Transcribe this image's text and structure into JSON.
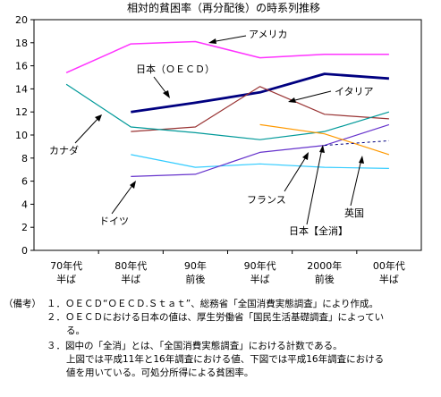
{
  "chart_data": {
    "type": "line",
    "title": "相対的貧困率（再分配後）の時系列推移",
    "ylim": [
      0,
      20
    ],
    "yticks": [
      0,
      2,
      4,
      6,
      8,
      10,
      12,
      14,
      16,
      18,
      20
    ],
    "categories": [
      [
        "70年代",
        "半ば"
      ],
      [
        "80年代",
        "半ば"
      ],
      [
        "90年",
        "前後"
      ],
      [
        "90年代",
        "半ば"
      ],
      [
        "2000年",
        "前後"
      ],
      [
        "00年代",
        "半ば"
      ]
    ],
    "series": [
      {
        "name": "アメリカ",
        "color": "#ff33ff",
        "width": 1.5,
        "dash": "",
        "values": [
          15.4,
          17.9,
          18.1,
          16.7,
          17.0,
          17.0
        ]
      },
      {
        "name": "日本（ＯＥＣＤ）",
        "color": "#000080",
        "width": 2.8,
        "dash": "",
        "values": [
          null,
          12.0,
          12.8,
          13.7,
          15.3,
          14.9
        ]
      },
      {
        "name": "イタリア",
        "color": "#993333",
        "width": 1.2,
        "dash": "",
        "values": [
          null,
          10.3,
          10.7,
          14.2,
          11.8,
          11.4
        ]
      },
      {
        "name": "カナダ",
        "color": "#009999",
        "width": 1.2,
        "dash": "",
        "values": [
          14.4,
          10.7,
          10.2,
          9.6,
          10.3,
          12.0
        ]
      },
      {
        "name": "フランス",
        "color": "#33ccff",
        "width": 1.2,
        "dash": "",
        "values": [
          null,
          8.3,
          7.2,
          7.5,
          7.2,
          7.1
        ]
      },
      {
        "name": "ドイツ",
        "color": "#6633cc",
        "width": 1.2,
        "dash": "",
        "values": [
          null,
          6.4,
          6.6,
          8.5,
          9.1,
          10.9
        ]
      },
      {
        "name": "英国",
        "color": "#ff9900",
        "width": 1.2,
        "dash": "",
        "values": [
          null,
          null,
          null,
          10.9,
          10.1,
          8.3
        ]
      },
      {
        "name": "日本【全消】",
        "color": "#000080",
        "width": 1.0,
        "dash": "3,3",
        "values": [
          null,
          null,
          null,
          null,
          9.1,
          9.5
        ]
      }
    ],
    "labels": {
      "usa": "アメリカ",
      "japan_oecd": "日本（ＯＥＣＤ）",
      "italy": "イタリア",
      "canada": "カナダ",
      "france": "フランス",
      "germany": "ドイツ",
      "uk": "英国",
      "japan_zensho": "日本【全消】"
    }
  },
  "notes": {
    "prefix": "（備考）",
    "n1": "１．ＯＥＣＤ“ＯＥＣＤ.Ｓｔａｔ”、総務省「全国消費実態調査」により作成。",
    "n2a": "２．ＯＥＣＤにおける日本の値は、厚生労働省「国民生活基礎調査」によってい",
    "n2b": "る。",
    "n3a": "３．図中の「全消」とは、「全国消費実態調査」における計数である。",
    "n3b": "上図では平成11年と16年調査における値、下図では平成16年調査における",
    "n3c": "値を用いている。可処分所得による貧困率。"
  }
}
